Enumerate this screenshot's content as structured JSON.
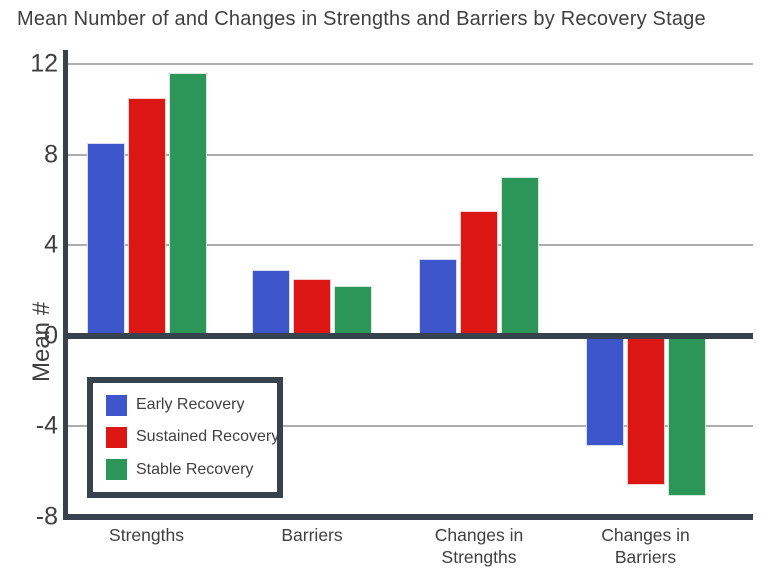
{
  "title": "Mean Number of and Changes in Strengths and Barriers by Recovery Stage",
  "chart_data": {
    "type": "bar",
    "title": "Mean Number of and Changes in Strengths and Barriers by Recovery Stage",
    "categories": [
      "Strengths",
      "Barriers",
      "Changes in\nStrengths",
      "Changes in\nBarriers"
    ],
    "series": [
      {
        "name": "Early Recovery",
        "color": "#3d56cc",
        "values": [
          8.5,
          2.9,
          3.4,
          -4.9
        ]
      },
      {
        "name": "Sustained Recovery",
        "color": "#db1613",
        "values": [
          10.5,
          2.5,
          5.5,
          -6.6
        ]
      },
      {
        "name": "Stable Recovery",
        "color": "#2b9657",
        "values": [
          11.6,
          2.2,
          7.0,
          -7.1
        ]
      }
    ],
    "xlabel": "",
    "ylabel": "Mean #",
    "yticks": [
      12,
      8,
      4,
      0,
      -4,
      -8
    ],
    "ylim": [
      -8,
      12.6
    ],
    "grid": true,
    "legend_position": "inside-bottom-left"
  },
  "colors": {
    "axis": "#37424c",
    "gridline": "#adadad",
    "text": "#3f3f3f",
    "background": "#ffffff"
  }
}
